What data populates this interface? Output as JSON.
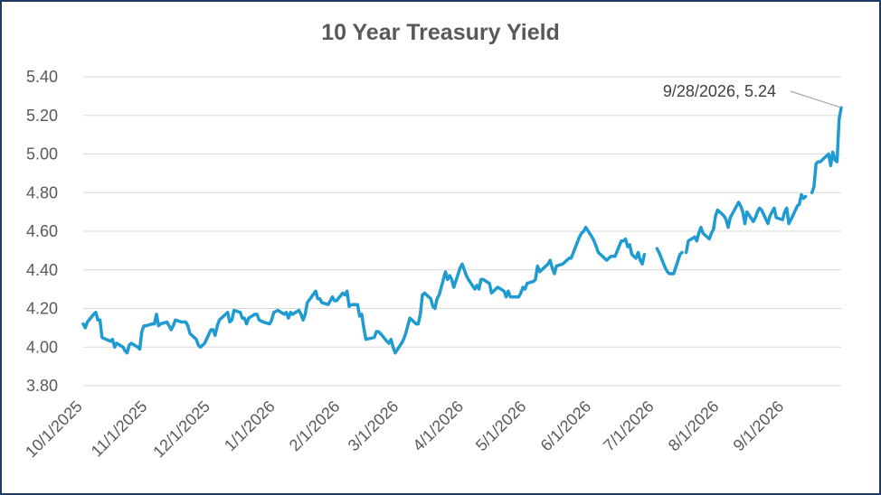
{
  "chart_data": {
    "type": "line",
    "title": "10 Year Treasury Yield",
    "xlabel": "",
    "ylabel": "",
    "ylim": [
      3.8,
      5.4
    ],
    "yticks": [
      "3.80",
      "4.00",
      "4.20",
      "4.40",
      "4.60",
      "4.80",
      "5.00",
      "5.20",
      "5.40"
    ],
    "xticks": [
      "10/1/2025",
      "11/1/2025",
      "12/1/2025",
      "1/1/2026",
      "2/1/2026",
      "3/1/2026",
      "4/1/2026",
      "5/1/2026",
      "6/1/2026",
      "7/1/2026",
      "8/1/2026",
      "9/1/2026"
    ],
    "grid": true,
    "line_color": "#1f9bd1",
    "annotation": {
      "label": "9/28/2026,  5.24",
      "date": "2026-09-28",
      "value": 5.24
    },
    "series": [
      {
        "points": [
          [
            "2025-10-01",
            4.12
          ],
          [
            "2025-10-02",
            4.1
          ],
          [
            "2025-10-03",
            4.13
          ],
          [
            "2025-10-06",
            4.17
          ],
          [
            "2025-10-07",
            4.18
          ],
          [
            "2025-10-08",
            4.14
          ],
          [
            "2025-10-09",
            4.14
          ],
          [
            "2025-10-10",
            4.05
          ],
          [
            "2025-10-14",
            4.03
          ],
          [
            "2025-10-15",
            4.04
          ],
          [
            "2025-10-16",
            4.0
          ],
          [
            "2025-10-17",
            4.02
          ],
          [
            "2025-10-20",
            4.0
          ],
          [
            "2025-10-21",
            3.98
          ],
          [
            "2025-10-22",
            3.97
          ],
          [
            "2025-10-23",
            4.01
          ],
          [
            "2025-10-24",
            4.02
          ],
          [
            "2025-10-27",
            4.0
          ],
          [
            "2025-10-28",
            3.99
          ],
          [
            "2025-10-29",
            4.08
          ],
          [
            "2025-10-30",
            4.11
          ],
          [
            "2025-10-31",
            4.11
          ],
          [
            "2025-11-03",
            4.12
          ],
          [
            "2025-11-04",
            4.12
          ],
          [
            "2025-11-05",
            4.17
          ],
          [
            "2025-11-06",
            4.11
          ],
          [
            "2025-11-07",
            4.12
          ],
          [
            "2025-11-10",
            4.13
          ],
          [
            "2025-11-12",
            4.09
          ],
          [
            "2025-11-13",
            4.11
          ],
          [
            "2025-11-14",
            4.14
          ],
          [
            "2025-11-17",
            4.13
          ],
          [
            "2025-11-18",
            4.13
          ],
          [
            "2025-11-19",
            4.13
          ],
          [
            "2025-11-20",
            4.11
          ],
          [
            "2025-11-21",
            4.07
          ],
          [
            "2025-11-24",
            4.04
          ],
          [
            "2025-11-25",
            4.01
          ],
          [
            "2025-11-26",
            4.0
          ],
          [
            "2025-11-28",
            4.02
          ],
          [
            "2025-12-01",
            4.09
          ],
          [
            "2025-12-02",
            4.09
          ],
          [
            "2025-12-03",
            4.06
          ],
          [
            "2025-12-04",
            4.11
          ],
          [
            "2025-12-05",
            4.14
          ],
          [
            "2025-12-08",
            4.17
          ],
          [
            "2025-12-09",
            4.18
          ],
          [
            "2025-12-10",
            4.13
          ],
          [
            "2025-12-11",
            4.14
          ],
          [
            "2025-12-12",
            4.19
          ],
          [
            "2025-12-15",
            4.18
          ],
          [
            "2025-12-16",
            4.15
          ],
          [
            "2025-12-17",
            4.15
          ],
          [
            "2025-12-18",
            4.12
          ],
          [
            "2025-12-19",
            4.15
          ],
          [
            "2025-12-22",
            4.17
          ],
          [
            "2025-12-23",
            4.17
          ],
          [
            "2025-12-24",
            4.14
          ],
          [
            "2025-12-26",
            4.13
          ],
          [
            "2025-12-29",
            4.12
          ],
          [
            "2025-12-30",
            4.14
          ],
          [
            "2025-12-31",
            4.18
          ],
          [
            "2026-01-02",
            4.19
          ],
          [
            "2026-01-05",
            4.17
          ],
          [
            "2026-01-06",
            4.18
          ],
          [
            "2026-01-07",
            4.15
          ],
          [
            "2026-01-08",
            4.18
          ],
          [
            "2026-01-09",
            4.17
          ],
          [
            "2026-01-12",
            4.19
          ],
          [
            "2026-01-13",
            4.17
          ],
          [
            "2026-01-14",
            4.14
          ],
          [
            "2026-01-15",
            4.17
          ],
          [
            "2026-01-16",
            4.23
          ],
          [
            "2026-01-20",
            4.29
          ],
          [
            "2026-01-21",
            4.25
          ],
          [
            "2026-01-22",
            4.25
          ],
          [
            "2026-01-23",
            4.23
          ],
          [
            "2026-01-26",
            4.22
          ],
          [
            "2026-01-27",
            4.24
          ],
          [
            "2026-01-28",
            4.26
          ],
          [
            "2026-01-29",
            4.24
          ],
          [
            "2026-01-30",
            4.24
          ],
          [
            "2026-02-02",
            4.28
          ],
          [
            "2026-02-03",
            4.27
          ],
          [
            "2026-02-04",
            4.29
          ],
          [
            "2026-02-05",
            4.21
          ],
          [
            "2026-02-06",
            4.22
          ],
          [
            "2026-02-09",
            4.22
          ],
          [
            "2026-02-10",
            4.16
          ],
          [
            "2026-02-11",
            4.17
          ],
          [
            "2026-02-12",
            4.1
          ],
          [
            "2026-02-13",
            4.04
          ],
          [
            "2026-02-17",
            4.05
          ],
          [
            "2026-02-18",
            4.08
          ],
          [
            "2026-02-19",
            4.08
          ],
          [
            "2026-02-20",
            4.07
          ],
          [
            "2026-02-23",
            4.03
          ],
          [
            "2026-02-24",
            4.02
          ],
          [
            "2026-02-25",
            4.04
          ],
          [
            "2026-02-26",
            4.0
          ],
          [
            "2026-02-27",
            3.97
          ],
          [
            "2026-03-02",
            4.02
          ],
          [
            "2026-03-03",
            4.04
          ],
          [
            "2026-03-04",
            4.07
          ],
          [
            "2026-03-05",
            4.11
          ],
          [
            "2026-03-06",
            4.15
          ],
          [
            "2026-03-09",
            4.12
          ],
          [
            "2026-03-10",
            4.12
          ],
          [
            "2026-03-11",
            4.17
          ],
          [
            "2026-03-12",
            4.27
          ],
          [
            "2026-03-13",
            4.28
          ],
          [
            "2026-03-16",
            4.25
          ],
          [
            "2026-03-17",
            4.21
          ],
          [
            "2026-03-18",
            4.2
          ],
          [
            "2026-03-19",
            4.25
          ],
          [
            "2026-03-20",
            4.27
          ],
          [
            "2026-03-23",
            4.39
          ],
          [
            "2026-03-24",
            4.35
          ],
          [
            "2026-03-25",
            4.37
          ],
          [
            "2026-03-26",
            4.35
          ],
          [
            "2026-03-27",
            4.31
          ],
          [
            "2026-03-30",
            4.41
          ],
          [
            "2026-03-31",
            4.43
          ],
          [
            "2026-04-01",
            4.4
          ],
          [
            "2026-04-02",
            4.37
          ],
          [
            "2026-04-03",
            4.35
          ],
          [
            "2026-04-06",
            4.3
          ],
          [
            "2026-04-07",
            4.32
          ],
          [
            "2026-04-08",
            4.3
          ],
          [
            "2026-04-09",
            4.35
          ],
          [
            "2026-04-10",
            4.35
          ],
          [
            "2026-04-13",
            4.33
          ],
          [
            "2026-04-14",
            4.28
          ],
          [
            "2026-04-15",
            4.29
          ],
          [
            "2026-04-16",
            4.3
          ],
          [
            "2026-04-17",
            4.31
          ],
          [
            "2026-04-20",
            4.29
          ],
          [
            "2026-04-21",
            4.26
          ],
          [
            "2026-04-22",
            4.29
          ],
          [
            "2026-04-23",
            4.26
          ],
          [
            "2026-04-24",
            4.26
          ],
          [
            "2026-04-27",
            4.26
          ],
          [
            "2026-04-28",
            4.28
          ],
          [
            "2026-04-29",
            4.31
          ],
          [
            "2026-04-30",
            4.3
          ],
          [
            "2026-05-01",
            4.33
          ],
          [
            "2026-05-04",
            4.34
          ],
          [
            "2026-05-05",
            4.35
          ],
          [
            "2026-05-06",
            4.42
          ],
          [
            "2026-05-07",
            4.39
          ],
          [
            "2026-05-08",
            4.4
          ],
          [
            "2026-05-11",
            4.43
          ],
          [
            "2026-05-12",
            4.45
          ],
          [
            "2026-05-13",
            4.41
          ],
          [
            "2026-05-14",
            4.38
          ],
          [
            "2026-05-15",
            4.42
          ],
          [
            "2026-05-18",
            4.43
          ],
          [
            "2026-05-19",
            4.44
          ],
          [
            "2026-05-20",
            4.45
          ],
          [
            "2026-05-21",
            4.46
          ],
          [
            "2026-05-22",
            4.46
          ],
          [
            "2026-05-26",
            4.57
          ],
          [
            "2026-05-27",
            4.59
          ],
          [
            "2026-05-28",
            4.6
          ],
          [
            "2026-05-29",
            4.62
          ],
          [
            "2026-06-01",
            4.57
          ],
          [
            "2026-06-02",
            4.55
          ],
          [
            "2026-06-03",
            4.52
          ],
          [
            "2026-06-04",
            4.49
          ],
          [
            "2026-06-05",
            4.48
          ],
          [
            "2026-06-08",
            4.45
          ],
          [
            "2026-06-09",
            4.46
          ],
          [
            "2026-06-10",
            4.47
          ],
          [
            "2026-06-11",
            4.47
          ],
          [
            "2026-06-12",
            4.47
          ],
          [
            "2026-06-15",
            4.55
          ],
          [
            "2026-06-16",
            4.55
          ],
          [
            "2026-06-17",
            4.56
          ],
          [
            "2026-06-18",
            4.52
          ],
          [
            "2026-06-19",
            4.53
          ],
          [
            "2026-06-20",
            4.48
          ],
          [
            "2026-06-22",
            4.46
          ],
          [
            "2026-06-23",
            4.49
          ],
          [
            "2026-06-24",
            4.45
          ],
          [
            "2026-06-25",
            4.43
          ],
          [
            "2026-06-26",
            4.48
          ],
          [
            null,
            null
          ],
          [
            "2026-07-02",
            4.51
          ],
          [
            "2026-07-03",
            4.49
          ],
          [
            "2026-07-06",
            4.41
          ],
          [
            "2026-07-07",
            4.39
          ],
          [
            "2026-07-08",
            4.38
          ],
          [
            "2026-07-09",
            4.38
          ],
          [
            "2026-07-10",
            4.38
          ],
          [
            "2026-07-13",
            4.48
          ],
          [
            "2026-07-14",
            4.49
          ],
          [
            null,
            null
          ],
          [
            "2026-07-16",
            4.49
          ],
          [
            "2026-07-17",
            4.55
          ],
          [
            "2026-07-20",
            4.57
          ],
          [
            "2026-07-21",
            4.55
          ],
          [
            "2026-07-22",
            4.59
          ],
          [
            "2026-07-23",
            4.62
          ],
          [
            "2026-07-24",
            4.59
          ],
          [
            "2026-07-27",
            4.56
          ],
          [
            "2026-07-28",
            4.59
          ],
          [
            "2026-07-29",
            4.61
          ],
          [
            "2026-07-30",
            4.68
          ],
          [
            "2026-07-31",
            4.71
          ],
          [
            "2026-08-03",
            4.68
          ],
          [
            "2026-08-04",
            4.66
          ],
          [
            "2026-08-05",
            4.62
          ],
          [
            "2026-08-06",
            4.67
          ],
          [
            "2026-08-07",
            4.69
          ],
          [
            "2026-08-10",
            4.75
          ],
          [
            "2026-08-11",
            4.73
          ],
          [
            "2026-08-12",
            4.7
          ],
          [
            "2026-08-13",
            4.64
          ],
          [
            "2026-08-14",
            4.7
          ],
          [
            "2026-08-17",
            4.65
          ],
          [
            "2026-08-18",
            4.67
          ],
          [
            "2026-08-19",
            4.7
          ],
          [
            "2026-08-20",
            4.72
          ],
          [
            "2026-08-21",
            4.71
          ],
          [
            "2026-08-24",
            4.64
          ],
          [
            "2026-08-25",
            4.68
          ],
          [
            "2026-08-26",
            4.7
          ],
          [
            "2026-08-27",
            4.72
          ],
          [
            "2026-08-28",
            4.67
          ],
          [
            "2026-08-31",
            4.66
          ],
          [
            "2026-09-01",
            4.7
          ],
          [
            "2026-09-02",
            4.72
          ],
          [
            "2026-09-03",
            4.64
          ],
          [
            "2026-09-04",
            4.66
          ],
          [
            "2026-09-07",
            4.73
          ],
          [
            "2026-09-08",
            4.74
          ],
          [
            "2026-09-09",
            4.79
          ],
          [
            "2026-09-10",
            4.77
          ],
          [
            "2026-09-11",
            4.78
          ],
          [
            null,
            null
          ],
          [
            "2026-09-14",
            4.8
          ],
          [
            "2026-09-15",
            4.83
          ],
          [
            "2026-09-16",
            4.95
          ],
          [
            "2026-09-17",
            4.96
          ],
          [
            "2026-09-18",
            4.96
          ],
          [
            "2026-09-21",
            4.99
          ],
          [
            "2026-09-22",
            5.0
          ],
          [
            "2026-09-23",
            4.94
          ],
          [
            "2026-09-24",
            5.01
          ],
          [
            "2026-09-25",
            4.97
          ],
          [
            "2026-09-26",
            4.96
          ],
          [
            "2026-09-27",
            5.18
          ],
          [
            "2026-09-28",
            5.24
          ]
        ]
      }
    ]
  }
}
